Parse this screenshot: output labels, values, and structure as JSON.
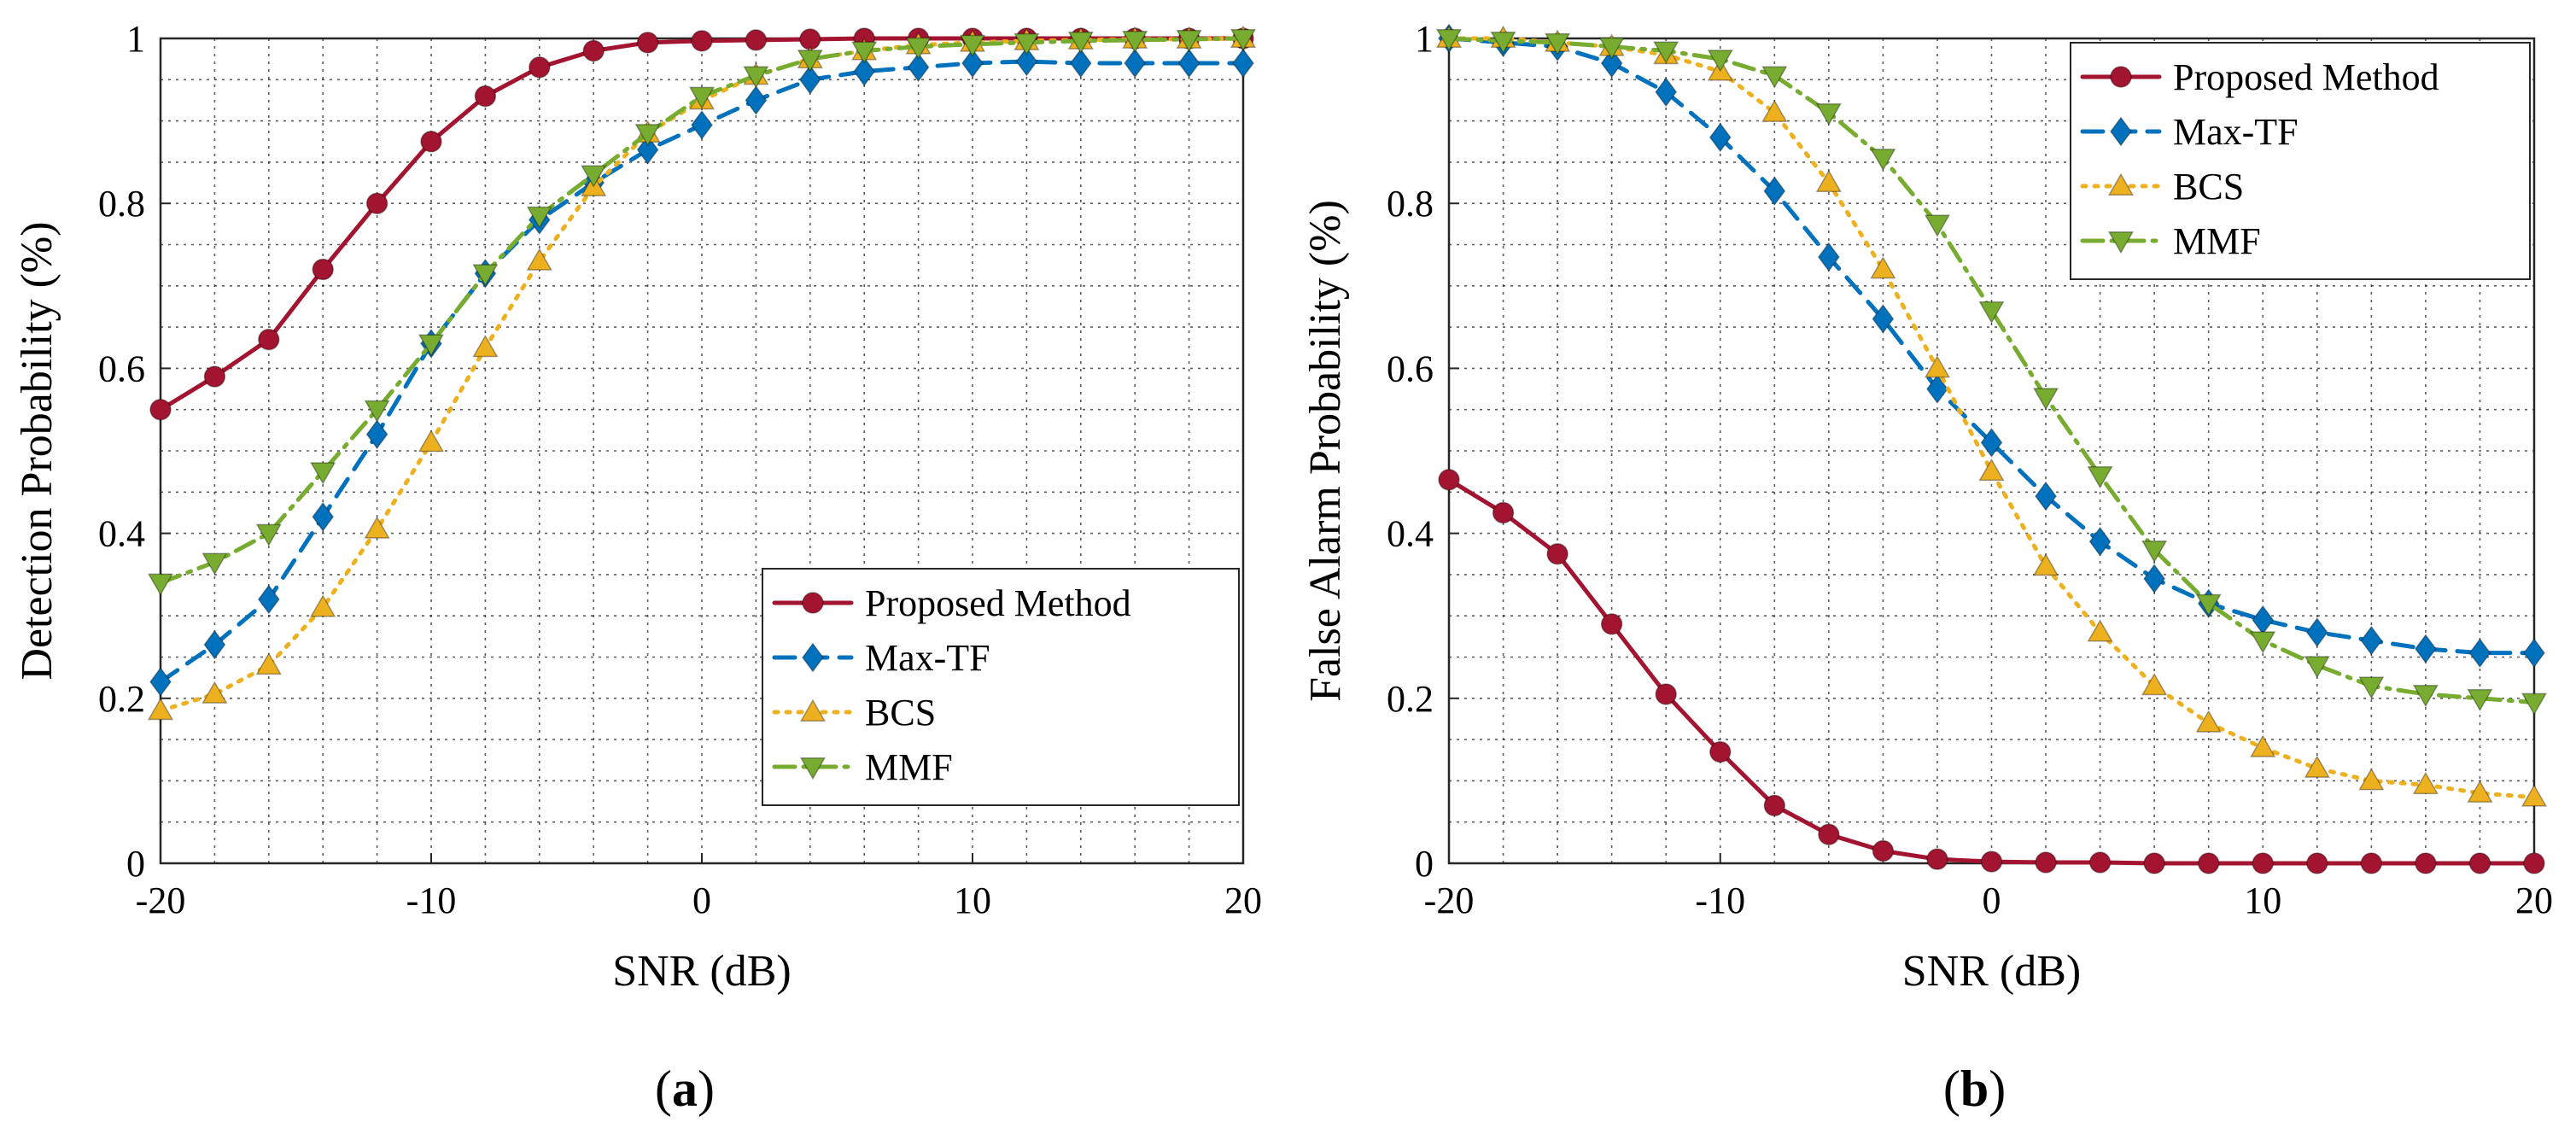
{
  "chart_data": [
    {
      "type": "line",
      "caption": "(a)",
      "caption_letter": "a",
      "xlabel": "SNR (dB)",
      "ylabel": "Detection Probability (%)",
      "xlim": [
        -20,
        20
      ],
      "ylim": [
        0,
        1
      ],
      "xticks": [
        -20,
        -10,
        0,
        10,
        20
      ],
      "xtick_labels": [
        "-20",
        "-10",
        "0",
        "10",
        "20"
      ],
      "yticks": [
        0,
        0.2,
        0.4,
        0.6,
        0.8,
        1
      ],
      "ytick_labels": [
        "0",
        "0.2",
        "0.4",
        "0.6",
        "0.8",
        "1"
      ],
      "grid": true,
      "legend_position": "bottom-right",
      "x": [
        -20,
        -18,
        -16,
        -14,
        -12,
        -10,
        -8,
        -6,
        -4,
        -2,
        0,
        2,
        4,
        6,
        8,
        10,
        12,
        14,
        16,
        18,
        20
      ],
      "series": [
        {
          "name": "Proposed Method",
          "color": "#a2142f",
          "marker": "circle",
          "dash": "solid",
          "values": [
            0.55,
            0.59,
            0.635,
            0.72,
            0.8,
            0.875,
            0.93,
            0.965,
            0.985,
            0.995,
            0.997,
            0.998,
            0.999,
            1,
            1,
            1,
            1,
            1,
            1,
            1,
            1
          ]
        },
        {
          "name": "Max-TF",
          "color": "#0072bd",
          "marker": "diamond",
          "dash": "dashed",
          "values": [
            0.22,
            0.265,
            0.32,
            0.42,
            0.52,
            0.63,
            0.715,
            0.78,
            0.825,
            0.865,
            0.895,
            0.925,
            0.95,
            0.96,
            0.965,
            0.97,
            0.972,
            0.97,
            0.97,
            0.97,
            0.97
          ]
        },
        {
          "name": "BCS",
          "color": "#edb120",
          "marker": "triangle-up",
          "dash": "dotted",
          "values": [
            0.185,
            0.205,
            0.24,
            0.31,
            0.405,
            0.51,
            0.625,
            0.73,
            0.82,
            0.885,
            0.925,
            0.955,
            0.975,
            0.985,
            0.992,
            0.995,
            0.997,
            0.998,
            0.999,
            0.999,
            1
          ]
        },
        {
          "name": "MMF",
          "color": "#77ac30",
          "marker": "triangle-down",
          "dash": "dashdot",
          "values": [
            0.34,
            0.365,
            0.4,
            0.475,
            0.55,
            0.63,
            0.715,
            0.785,
            0.835,
            0.885,
            0.93,
            0.955,
            0.975,
            0.985,
            0.99,
            0.993,
            0.995,
            0.997,
            0.998,
            0.999,
            1
          ]
        }
      ]
    },
    {
      "type": "line",
      "caption": "(b)",
      "caption_letter": "b",
      "xlabel": "SNR (dB)",
      "ylabel": "False Alarm Probability (%)",
      "xlim": [
        -20,
        20
      ],
      "ylim": [
        0,
        1
      ],
      "xticks": [
        -20,
        -10,
        0,
        10,
        20
      ],
      "xtick_labels": [
        "-20",
        "-10",
        "0",
        "10",
        "20"
      ],
      "yticks": [
        0,
        0.2,
        0.4,
        0.6,
        0.8,
        1
      ],
      "ytick_labels": [
        "0",
        "0.2",
        "0.4",
        "0.6",
        "0.8",
        "1"
      ],
      "grid": true,
      "legend_position": "top-right",
      "x": [
        -20,
        -18,
        -16,
        -14,
        -12,
        -10,
        -8,
        -6,
        -4,
        -2,
        0,
        2,
        4,
        6,
        8,
        10,
        12,
        14,
        16,
        18,
        20
      ],
      "series": [
        {
          "name": "Proposed Method",
          "color": "#a2142f",
          "marker": "circle",
          "dash": "solid",
          "values": [
            0.465,
            0.425,
            0.375,
            0.29,
            0.205,
            0.135,
            0.07,
            0.035,
            0.015,
            0.005,
            0.002,
            0.001,
            0.001,
            0,
            0,
            0,
            0,
            0,
            0,
            0,
            0
          ]
        },
        {
          "name": "Max-TF",
          "color": "#0072bd",
          "marker": "diamond",
          "dash": "dashed",
          "values": [
            1,
            0.995,
            0.99,
            0.97,
            0.935,
            0.88,
            0.815,
            0.735,
            0.66,
            0.575,
            0.51,
            0.445,
            0.39,
            0.345,
            0.315,
            0.295,
            0.28,
            0.27,
            0.26,
            0.255,
            0.255
          ]
        },
        {
          "name": "BCS",
          "color": "#edb120",
          "marker": "triangle-up",
          "dash": "dotted",
          "values": [
            1,
            1,
            0.995,
            0.99,
            0.98,
            0.96,
            0.91,
            0.825,
            0.72,
            0.6,
            0.475,
            0.36,
            0.28,
            0.215,
            0.17,
            0.14,
            0.115,
            0.1,
            0.095,
            0.085,
            0.08
          ]
        },
        {
          "name": "MMF",
          "color": "#77ac30",
          "marker": "triangle-down",
          "dash": "dashdot",
          "values": [
            1,
            0.997,
            0.995,
            0.99,
            0.985,
            0.975,
            0.955,
            0.91,
            0.855,
            0.775,
            0.67,
            0.565,
            0.47,
            0.38,
            0.315,
            0.27,
            0.24,
            0.215,
            0.205,
            0.2,
            0.195
          ]
        }
      ]
    }
  ]
}
